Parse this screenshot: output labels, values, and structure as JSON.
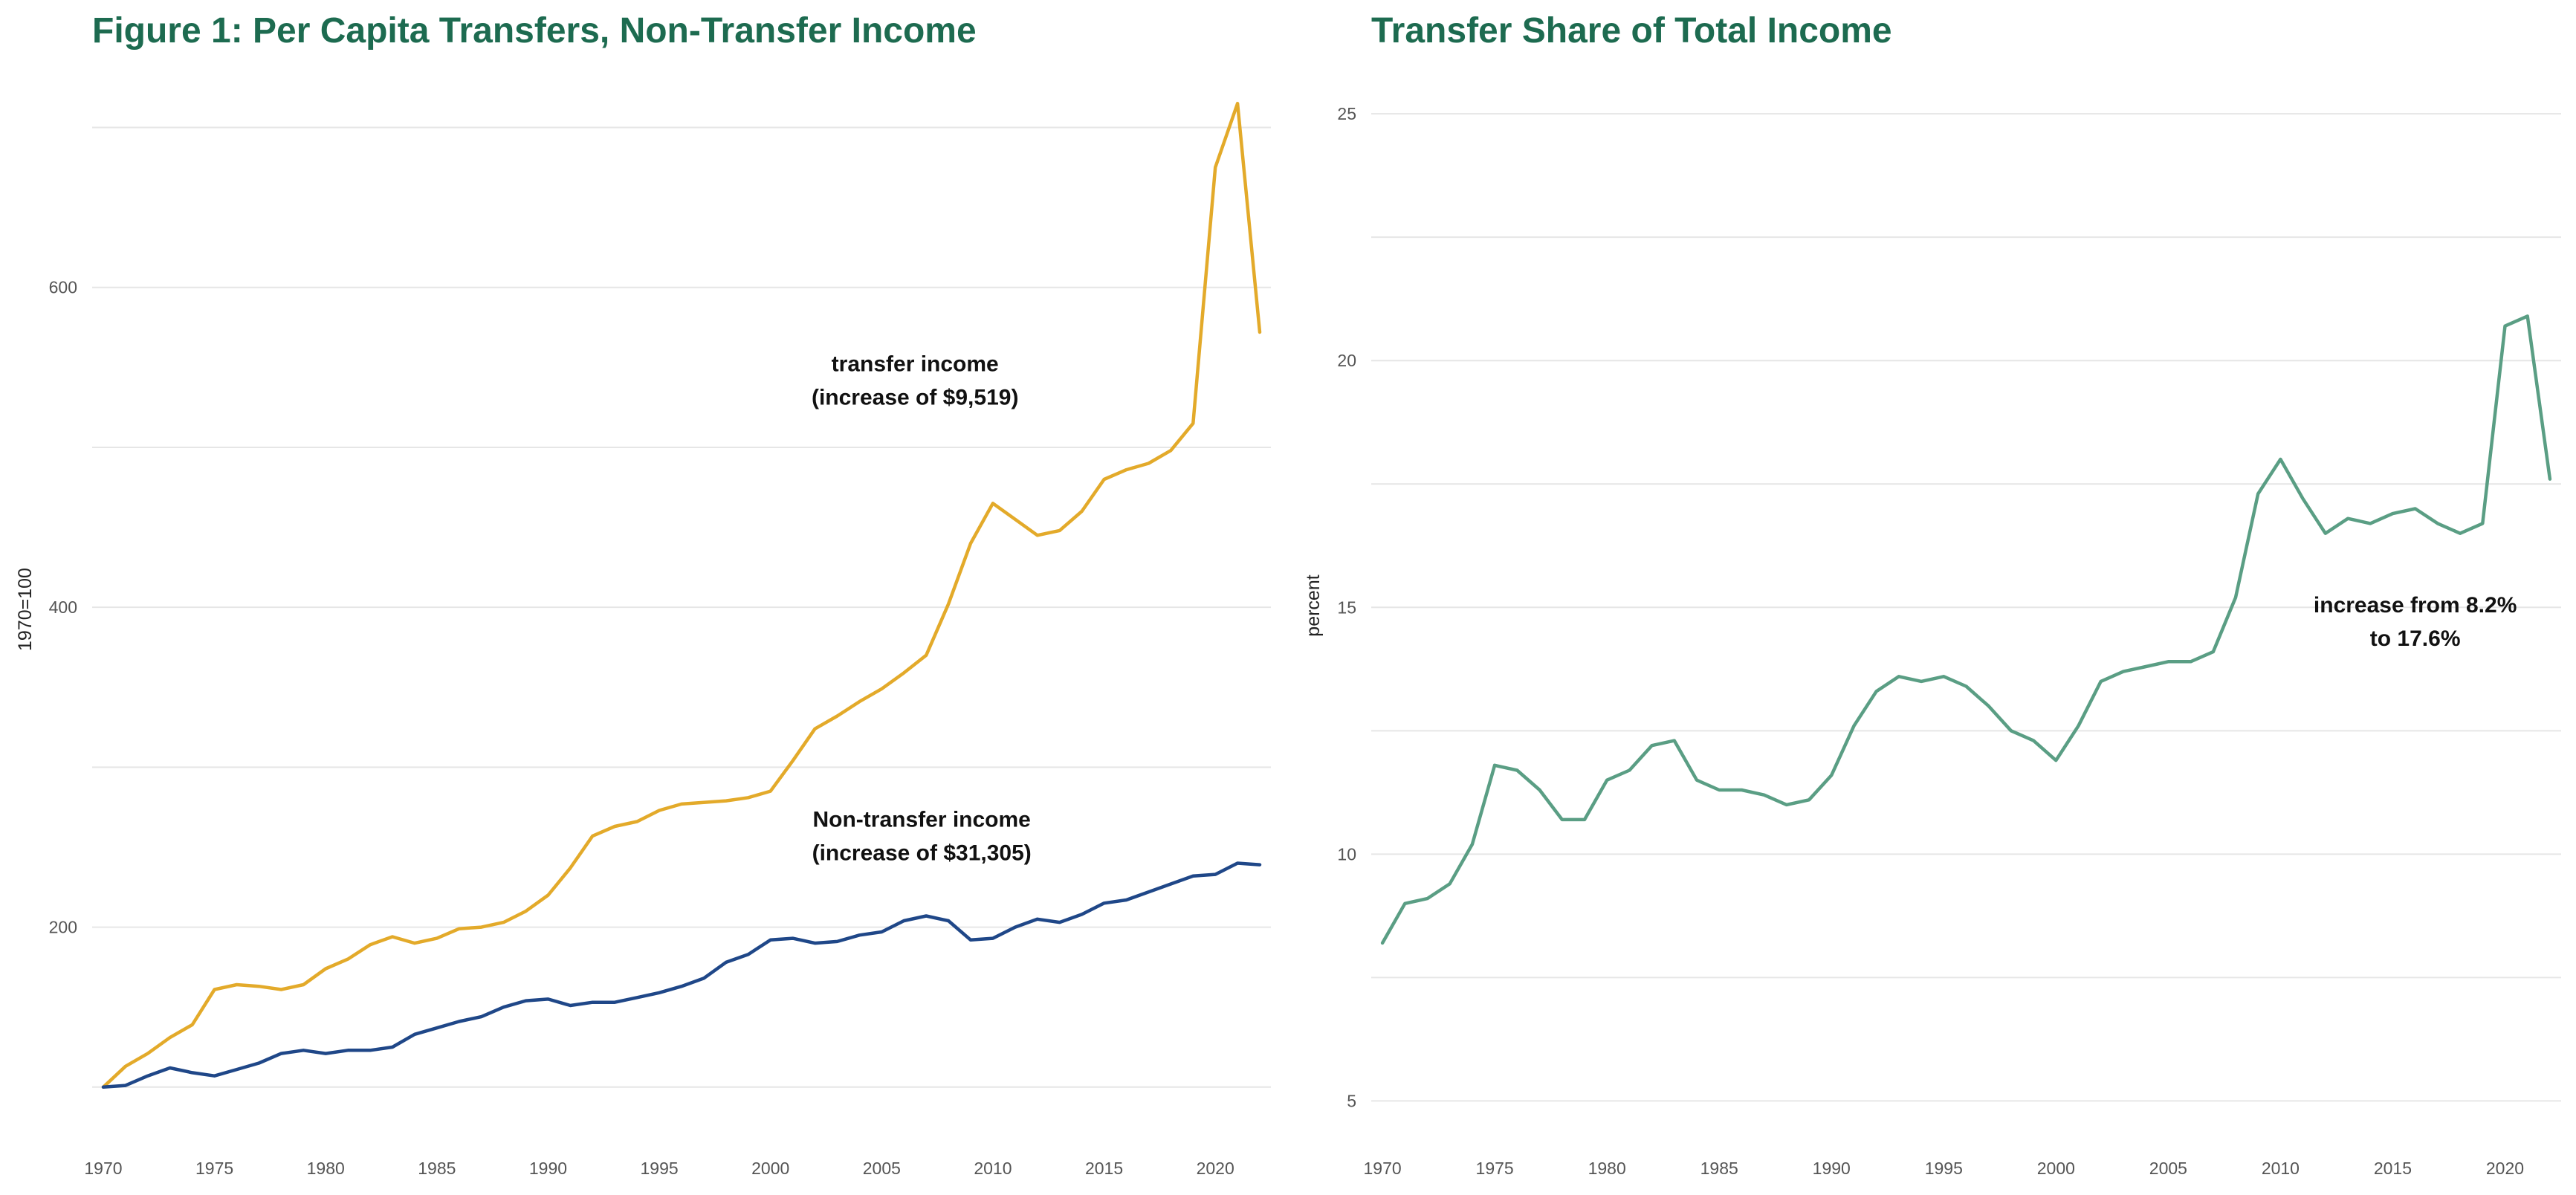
{
  "chart_data": [
    {
      "type": "line",
      "title": "Figure 1: Per Capita Transfers, Non-Transfer Income",
      "xlabel": "",
      "ylabel": "1970=100",
      "x": [
        1970,
        1971,
        1972,
        1973,
        1974,
        1975,
        1976,
        1977,
        1978,
        1979,
        1980,
        1981,
        1982,
        1983,
        1984,
        1985,
        1986,
        1987,
        1988,
        1989,
        1990,
        1991,
        1992,
        1993,
        1994,
        1995,
        1996,
        1997,
        1998,
        1999,
        2000,
        2001,
        2002,
        2003,
        2004,
        2005,
        2006,
        2007,
        2008,
        2009,
        2010,
        2011,
        2012,
        2013,
        2014,
        2015,
        2016,
        2017,
        2018,
        2019,
        2020,
        2021,
        2022
      ],
      "xlim": [
        1969.5,
        2022.5
      ],
      "ylim": [
        92,
        710
      ],
      "xticks": [
        1970,
        1975,
        1980,
        1985,
        1990,
        1995,
        2000,
        2005,
        2010,
        2015,
        2020
      ],
      "yticks": [
        200,
        400,
        600
      ],
      "grid_minor_y": [
        100,
        300,
        500,
        700
      ],
      "grid": true,
      "legend": "none",
      "series": [
        {
          "key": "transfer",
          "color": "#e3aa2a",
          "values": [
            100,
            113,
            121,
            131,
            139,
            161,
            164,
            163,
            161,
            164,
            174,
            180,
            189,
            194,
            190,
            193,
            199,
            200,
            203,
            210,
            220,
            237,
            257,
            263,
            266,
            273,
            277,
            278,
            279,
            281,
            285,
            304,
            324,
            332,
            341,
            349,
            359,
            370,
            402,
            440,
            465,
            455,
            445,
            448,
            460,
            480,
            486,
            490,
            498,
            515,
            675,
            715,
            572
          ]
        },
        {
          "key": "nontransfer",
          "color": "#1f4788",
          "values": [
            100,
            101,
            107,
            112,
            109,
            107,
            111,
            115,
            121,
            123,
            121,
            123,
            123,
            125,
            133,
            137,
            141,
            144,
            150,
            154,
            155,
            151,
            153,
            153,
            156,
            159,
            163,
            168,
            178,
            183,
            192,
            193,
            190,
            191,
            195,
            197,
            204,
            207,
            204,
            192,
            193,
            200,
            205,
            203,
            208,
            215,
            217,
            222,
            227,
            232,
            233,
            240,
            239
          ]
        }
      ],
      "annotations": [
        {
          "key": "transfer",
          "lines": [
            "transfer income",
            "(increase of $9,519)"
          ],
          "x": 2006.5,
          "y": 540
        },
        {
          "key": "nontransfer",
          "lines": [
            "Non-transfer income",
            "(increase of $31,305)"
          ],
          "x": 2006.8,
          "y": 255
        }
      ]
    },
    {
      "type": "line",
      "title": "Transfer Share of Total Income",
      "xlabel": "",
      "ylabel": "percent",
      "x": [
        1970,
        1971,
        1972,
        1973,
        1974,
        1975,
        1976,
        1977,
        1978,
        1979,
        1980,
        1981,
        1982,
        1983,
        1984,
        1985,
        1986,
        1987,
        1988,
        1989,
        1990,
        1991,
        1992,
        1993,
        1994,
        1995,
        1996,
        1997,
        1998,
        1999,
        2000,
        2001,
        2002,
        2003,
        2004,
        2005,
        2006,
        2007,
        2008,
        2009,
        2010,
        2011,
        2012,
        2013,
        2014,
        2015,
        2016,
        2017,
        2018,
        2019,
        2020,
        2021,
        2022
      ],
      "xlim": [
        1969.5,
        2022.5
      ],
      "ylim": [
        4.6,
        25.8
      ],
      "xticks": [
        1970,
        1975,
        1980,
        1985,
        1990,
        1995,
        2000,
        2005,
        2010,
        2015,
        2020
      ],
      "yticks": [
        5,
        10,
        15,
        20,
        25
      ],
      "grid_minor_y": [
        7.5,
        12.5,
        17.5,
        22.5
      ],
      "grid": true,
      "legend": "none",
      "series": [
        {
          "key": "share",
          "color": "#5a9e84",
          "values": [
            8.2,
            9.0,
            9.1,
            9.4,
            10.2,
            11.8,
            11.7,
            11.3,
            10.7,
            10.7,
            11.5,
            11.7,
            12.2,
            12.3,
            11.5,
            11.3,
            11.3,
            11.2,
            11.0,
            11.1,
            11.6,
            12.6,
            13.3,
            13.6,
            13.5,
            13.6,
            13.4,
            13.0,
            12.5,
            12.3,
            11.9,
            12.6,
            13.5,
            13.7,
            13.8,
            13.9,
            13.9,
            14.1,
            15.2,
            17.3,
            18.0,
            17.2,
            16.5,
            16.8,
            16.7,
            16.9,
            17.0,
            16.7,
            16.5,
            16.7,
            20.7,
            20.9,
            17.6
          ]
        }
      ],
      "annotations": [
        {
          "key": "share",
          "lines": [
            "increase from 8.2%",
            "to 17.6%"
          ],
          "x": 2016.0,
          "y": 14.65
        }
      ]
    }
  ]
}
